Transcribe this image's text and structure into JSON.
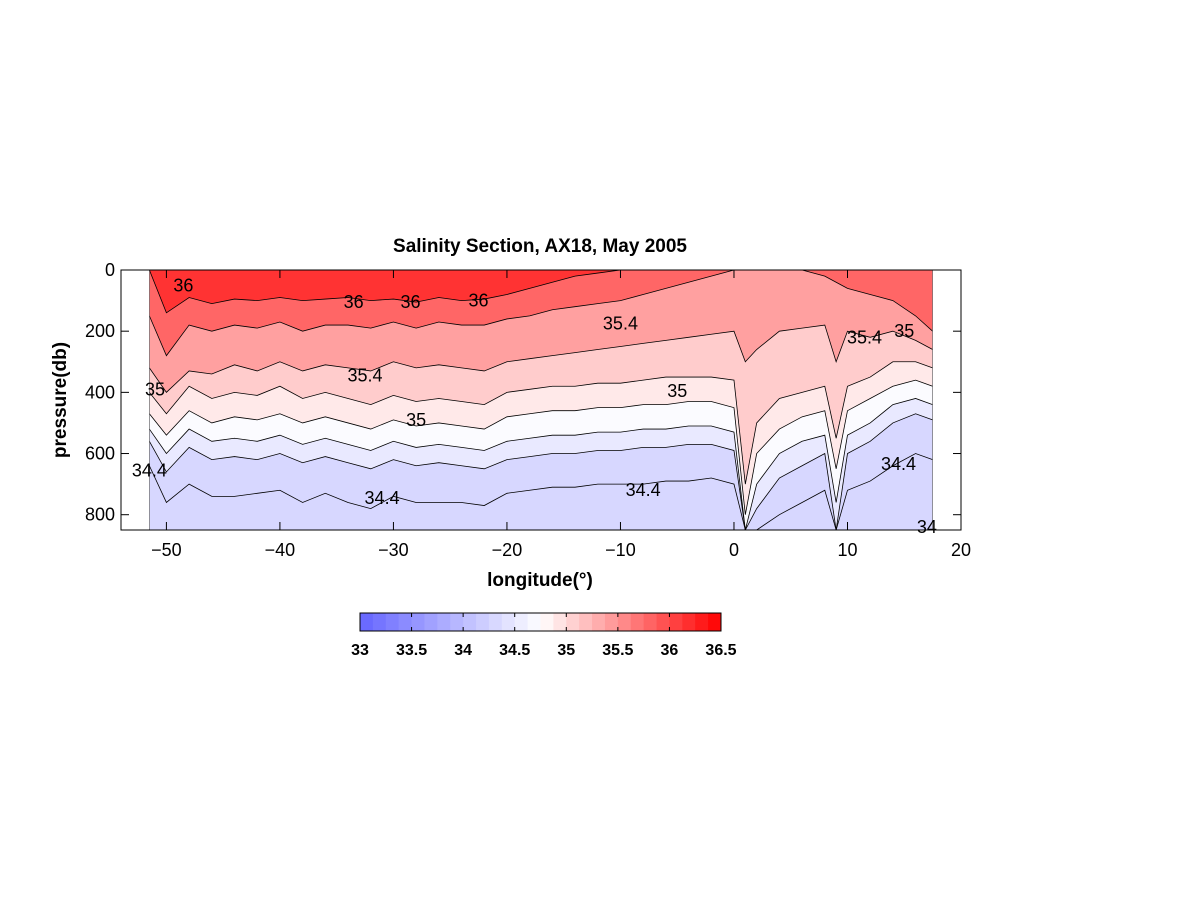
{
  "chart_data": {
    "type": "heatmap",
    "title": "Salinity Section,  AX18, May 2005",
    "xlabel": "longitude(°)",
    "ylabel": "pressure(db)",
    "xlim": [
      -54,
      20
    ],
    "ylim": [
      850,
      0
    ],
    "x_ticks": [
      "−50",
      "−40",
      "−30",
      "−20",
      "−10",
      "0",
      "10",
      "20"
    ],
    "x_tick_values": [
      -50,
      -40,
      -30,
      -20,
      -10,
      0,
      10,
      20
    ],
    "y_ticks": [
      "0",
      "200",
      "400",
      "600",
      "800"
    ],
    "y_tick_values": [
      0,
      200,
      400,
      600,
      800
    ],
    "section_extent_lon": [
      -51.5,
      17.5
    ],
    "colorbar": {
      "range": [
        33,
        36.5
      ],
      "ticks": [
        "33",
        "33.5",
        "34",
        "34.5",
        "35",
        "35.5",
        "36",
        "36.5"
      ],
      "tick_values": [
        33,
        33.5,
        34,
        34.5,
        35,
        35.5,
        36,
        36.5
      ],
      "low_color": "#6464ff",
      "mid_color": "#ffffff",
      "high_color": "#ff0000"
    },
    "contour_levels": [
      34.4,
      34.6,
      34.8,
      35.0,
      35.2,
      35.4,
      35.6,
      35.8,
      36.0
    ],
    "contour_labels": [
      {
        "text": "36",
        "lon": -48.5,
        "p": 50
      },
      {
        "text": "36",
        "lon": -33.5,
        "p": 105
      },
      {
        "text": "36",
        "lon": -28.5,
        "p": 105
      },
      {
        "text": "36",
        "lon": -22.5,
        "p": 100
      },
      {
        "text": "35.4",
        "lon": -10,
        "p": 175
      },
      {
        "text": "35.4",
        "lon": 11.5,
        "p": 220
      },
      {
        "text": "35",
        "lon": 15,
        "p": 200
      },
      {
        "text": "35",
        "lon": -51,
        "p": 390
      },
      {
        "text": "35.4",
        "lon": -32.5,
        "p": 345
      },
      {
        "text": "35",
        "lon": -5,
        "p": 395
      },
      {
        "text": "35",
        "lon": -28,
        "p": 490
      },
      {
        "text": "34.4",
        "lon": -51.5,
        "p": 655
      },
      {
        "text": "34.4",
        "lon": -31,
        "p": 745
      },
      {
        "text": "34.4",
        "lon": -8,
        "p": 720
      },
      {
        "text": "34.4",
        "lon": 14.5,
        "p": 635
      },
      {
        "text": "34",
        "lon": 17,
        "p": 840
      }
    ],
    "layers_note_rows": "pressure of each isohaline at each longitude",
    "longitudes": [
      -51.5,
      -50,
      -48,
      -46,
      -44,
      -42,
      -40,
      -38,
      -36,
      -34,
      -32,
      -30,
      -28,
      -26,
      -24,
      -22,
      -20,
      -18,
      -16,
      -14,
      -12,
      -10,
      -8,
      -6,
      -4,
      -2,
      0,
      1,
      2,
      4,
      6,
      8,
      9,
      10,
      12,
      14,
      16,
      17.5
    ],
    "isohalines": [
      {
        "level": 36.0,
        "p": [
          0,
          140,
          90,
          110,
          95,
          100,
          90,
          100,
          95,
          90,
          100,
          95,
          105,
          90,
          100,
          95,
          80,
          60,
          40,
          20,
          10,
          0,
          0,
          0,
          0,
          0,
          0,
          0,
          0,
          0,
          0,
          0,
          0,
          0,
          0,
          0,
          0,
          0
        ]
      },
      {
        "level": 35.6,
        "p": [
          150,
          280,
          180,
          200,
          180,
          190,
          170,
          200,
          180,
          180,
          190,
          170,
          190,
          170,
          180,
          180,
          160,
          150,
          130,
          120,
          110,
          100,
          80,
          60,
          40,
          20,
          0,
          0,
          0,
          0,
          0,
          20,
          40,
          60,
          80,
          100,
          150,
          200
        ]
      },
      {
        "level": 35.2,
        "p": [
          320,
          400,
          330,
          340,
          310,
          330,
          300,
          330,
          310,
          320,
          330,
          300,
          320,
          310,
          320,
          330,
          300,
          290,
          280,
          270,
          260,
          250,
          240,
          230,
          220,
          210,
          200,
          300,
          260,
          200,
          190,
          180,
          300,
          200,
          220,
          200,
          230,
          260
        ]
      },
      {
        "level": 35.0,
        "p": [
          400,
          470,
          380,
          420,
          400,
          410,
          380,
          420,
          400,
          420,
          440,
          410,
          430,
          420,
          430,
          440,
          400,
          390,
          380,
          380,
          370,
          370,
          360,
          350,
          350,
          350,
          360,
          700,
          500,
          420,
          400,
          380,
          550,
          380,
          350,
          300,
          300,
          320
        ]
      },
      {
        "level": 34.8,
        "p": [
          470,
          540,
          460,
          500,
          480,
          490,
          470,
          500,
          480,
          500,
          520,
          490,
          510,
          500,
          510,
          520,
          480,
          470,
          460,
          460,
          450,
          450,
          440,
          440,
          430,
          430,
          450,
          800,
          600,
          520,
          480,
          460,
          650,
          460,
          420,
          380,
          360,
          380
        ]
      },
      {
        "level": 34.6,
        "p": [
          520,
          600,
          520,
          560,
          550,
          560,
          540,
          570,
          550,
          570,
          590,
          560,
          580,
          570,
          580,
          590,
          560,
          550,
          540,
          540,
          530,
          530,
          520,
          520,
          510,
          510,
          530,
          850,
          700,
          600,
          560,
          540,
          760,
          540,
          500,
          440,
          420,
          440
        ]
      },
      {
        "level": 34.4,
        "p": [
          560,
          660,
          580,
          620,
          610,
          620,
          600,
          630,
          610,
          630,
          650,
          620,
          640,
          630,
          640,
          650,
          620,
          610,
          600,
          600,
          590,
          590,
          580,
          580,
          570,
          570,
          590,
          850,
          780,
          680,
          640,
          600,
          850,
          600,
          560,
          500,
          470,
          490
        ]
      },
      {
        "level": 34.2,
        "p": [
          640,
          760,
          700,
          740,
          740,
          730,
          720,
          760,
          730,
          760,
          780,
          740,
          760,
          760,
          760,
          770,
          730,
          720,
          710,
          710,
          700,
          700,
          700,
          690,
          690,
          680,
          700,
          850,
          850,
          800,
          760,
          720,
          850,
          720,
          690,
          640,
          600,
          620
        ]
      }
    ]
  }
}
